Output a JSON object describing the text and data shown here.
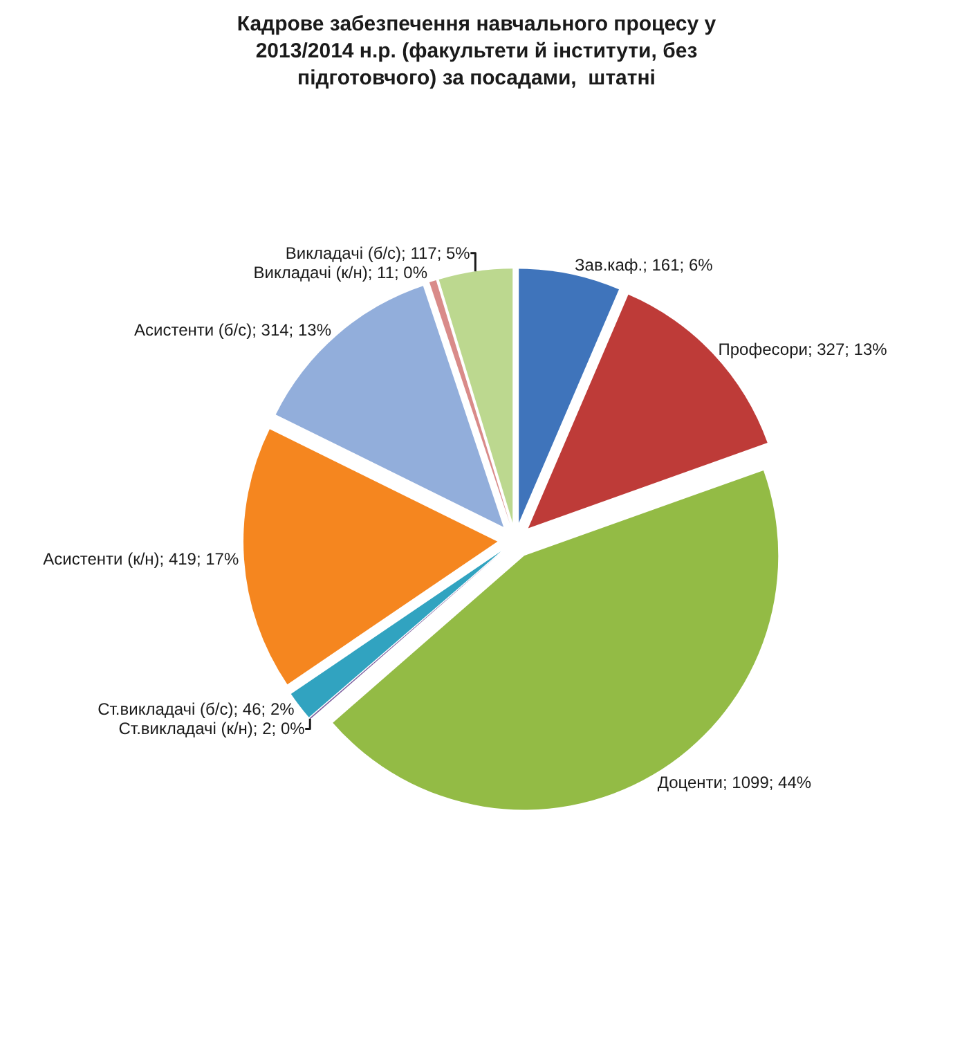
{
  "chart_data": {
    "type": "pie",
    "title": "Кадрове забезпечення навчального процесу у 2013/2014 н.р. (факультети й інститути, без підготовчого) за посадами,  штатні",
    "categories": [
      "Зав.каф.",
      "Професори",
      "Доценти",
      "Ст.викладачі (к/н)",
      "Ст.викладачі (б/с)",
      "Асистенти (к/н)",
      "Асистенти (б/с)",
      "Викладачі (к/н)",
      "Викладачі (б/с)"
    ],
    "values": [
      161,
      327,
      1099,
      2,
      46,
      419,
      314,
      11,
      117
    ],
    "colors": [
      "#3f74bb",
      "#be3b38",
      "#93bb45",
      "#7f63a1",
      "#31a3c0",
      "#f5861f",
      "#92aedb",
      "#d98b89",
      "#bcd88f"
    ],
    "value_labels": [
      "; 161; 6%",
      "; 327; 13%",
      "; 1099; 44%",
      "; 2; 0%",
      "; 46; 2%",
      "; 419; 17%",
      "; 314; 13%",
      "; 11; 0%",
      "; 117; 5%"
    ],
    "legend": false
  }
}
